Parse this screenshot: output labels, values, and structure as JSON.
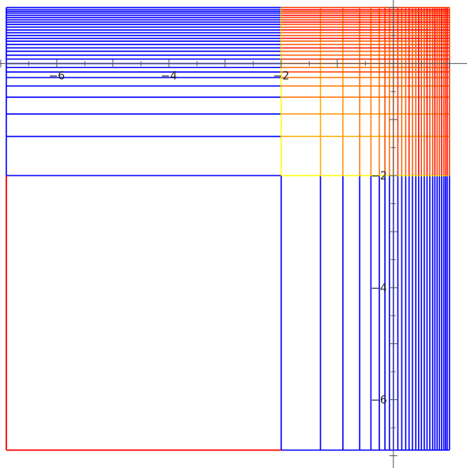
{
  "chart_data": {
    "type": "line",
    "title": "",
    "xlabel": "",
    "ylabel": "",
    "xlim": [
      -6.9,
      1.2
    ],
    "ylim": [
      -7.05,
      1.05
    ],
    "grid": false,
    "x_ticks": [
      {
        "value": -6,
        "label": "−6"
      },
      {
        "value": -4,
        "label": "−4"
      },
      {
        "value": -2,
        "label": "−2"
      }
    ],
    "y_ticks": [
      {
        "value": -2,
        "label": "−2"
      },
      {
        "value": -4,
        "label": "−4"
      },
      {
        "value": -6,
        "label": "−6"
      }
    ],
    "grid_values": [
      -2,
      -1.3,
      -0.9,
      -0.6,
      -0.4,
      -0.25,
      -0.15,
      -0.07,
      0.0,
      0.08,
      0.15,
      0.22,
      0.28,
      0.34,
      0.4,
      0.45,
      0.5,
      0.55,
      0.6,
      0.65,
      0.7,
      0.74,
      0.78,
      0.82,
      0.86,
      0.9,
      0.93,
      0.96,
      1.0
    ],
    "series": [
      {
        "color": "#0000ff",
        "segments": [
          {
            "y": -6.9,
            "x": [
              -2.0,
              1.0
            ]
          },
          {
            "x": -6.9,
            "y": [
              -2.0,
              1.0
            ]
          },
          {
            "y": -2.0,
            "x": [
              -6.9,
              -2.0
            ]
          },
          {
            "x": -2.0,
            "y": [
              -6.9,
              -2.0
            ]
          }
        ],
        "vertical_lines_x": [
          -1.3,
          -0.9,
          -0.6,
          -0.4,
          -0.25,
          -0.15,
          -0.07,
          0.0,
          0.08,
          0.15,
          0.22,
          0.28,
          0.34,
          0.4,
          0.45,
          0.5,
          0.55,
          0.6,
          0.65,
          0.7,
          0.74,
          0.78,
          0.82,
          0.86,
          0.9,
          0.93,
          0.96,
          1.0
        ],
        "vertical_lines_yrange": [
          -6.9,
          -2.0
        ],
        "horizontal_lines_y": [
          -1.3,
          -0.9,
          -0.6,
          -0.4,
          -0.25,
          -0.15,
          -0.07,
          0.0,
          0.08,
          0.15,
          0.22,
          0.28,
          0.34,
          0.4,
          0.45,
          0.5,
          0.55,
          0.6,
          0.65,
          0.7,
          0.74,
          0.78,
          0.82,
          0.86,
          0.9,
          0.93,
          0.96,
          1.0
        ],
        "horizontal_lines_xrange": [
          -6.9,
          -2.0
        ]
      },
      {
        "color": "#ff0000",
        "segments": [
          {
            "x": -6.9,
            "y": [
              -6.9,
              -2.0
            ]
          },
          {
            "y": -6.9,
            "x": [
              -6.9,
              -2.0
            ]
          }
        ]
      },
      {
        "colors": [
          "#ffff00",
          "#ff0000"
        ],
        "grid_region": {
          "x": [
            -2.0,
            1.0
          ],
          "y": [
            -2.0,
            1.0
          ]
        }
      }
    ]
  }
}
